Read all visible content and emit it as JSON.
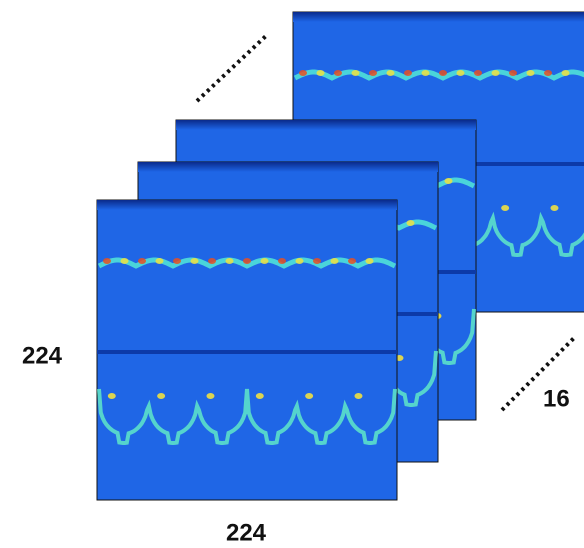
{
  "labels": {
    "height": "224",
    "width": "224",
    "channels": "16"
  }
}
